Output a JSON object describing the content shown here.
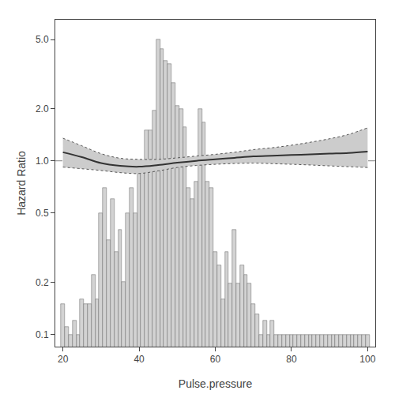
{
  "chart_data": {
    "type": "bar",
    "xlabel": "Pulse.pressure",
    "ylabel": "Hazard Ratio",
    "log": "y",
    "grid": false,
    "xlim": [
      18,
      102
    ],
    "xticks": [
      20,
      40,
      60,
      80,
      100
    ],
    "ylim": [
      0.085,
      6.5
    ],
    "yticks": [
      0.1,
      0.2,
      0.5,
      {
        "value": 1.0,
        "label": "1.0"
      },
      {
        "value": 2.0,
        "label": "2.0"
      },
      {
        "value": 5.0,
        "label": "5.0"
      }
    ],
    "series": [
      {
        "type": "bar",
        "color": "#d3d3d3",
        "x": [
          20,
          21,
          22,
          23,
          24,
          25,
          26,
          27,
          28,
          29,
          30,
          31,
          32,
          33,
          34,
          35,
          36,
          37,
          38,
          39,
          40,
          41,
          42,
          43,
          44,
          45,
          46,
          47,
          48,
          49,
          50,
          51,
          52,
          53,
          54,
          55,
          56,
          57,
          58,
          59,
          60,
          61,
          62,
          63,
          64,
          65,
          66,
          67,
          68,
          69,
          70,
          71,
          72,
          73,
          74,
          75,
          76,
          77,
          78,
          79,
          80,
          81,
          82,
          83,
          84,
          85,
          86,
          87,
          88,
          89,
          90,
          91,
          92,
          93,
          94,
          95,
          96,
          97,
          98,
          99,
          100
        ],
        "values": [
          0.15002,
          0.11003,
          0.09996,
          0.12003,
          0.09996,
          0.15993,
          0.15002,
          0.15002,
          0.21981,
          0.15993,
          0.50007,
          0.69977,
          0.34994,
          0.5999,
          0.29999,
          0.40012,
          0.19989,
          0.50007,
          0.69977,
          0.50007,
          0.95123,
          1,
          1.4993,
          1.4993,
          1.9387,
          4.9978,
          4.3973,
          3.7622,
          3.6002,
          2.8011,
          2.0772,
          1.9997,
          1.5683,
          0.69977,
          0.5999,
          0.76033,
          1.9997,
          1.6653,
          0.76033,
          0.69977,
          0.29999,
          0.25007,
          0.16009,
          0.29999,
          0.19691,
          0.40012,
          0.19691,
          0.25007,
          0.21959,
          0.19691,
          0.15002,
          0.13003,
          0.09996,
          0.12003,
          0.09996,
          0.12003,
          0.09996,
          0.09996,
          0.09996,
          0.09996,
          0.09996,
          0.09996,
          0.09996,
          0.09996,
          0.09996,
          0.09996,
          0.09996,
          0.09996,
          0.09996,
          0.09996,
          0.09996,
          0.09996,
          0.09996,
          0.09996,
          0.09996,
          0.09996,
          0.09996,
          0.09996,
          0.09996,
          0.09996,
          0.09996
        ]
      },
      {
        "type": "line",
        "color": "#999999",
        "line_style": "dashed",
        "x": [
          18,
          102
        ],
        "values": [
          1.0,
          1.0
        ]
      },
      {
        "type": "band",
        "color": "#cccccc",
        "line_style": "dotted",
        "x": [
          20,
          25,
          30,
          35,
          40,
          45,
          50,
          55,
          60,
          65,
          70,
          75,
          80,
          85,
          90,
          95,
          100
        ],
        "upper": [
          1.35,
          1.22,
          1.1,
          1.035,
          1.02,
          1.02,
          1.04,
          1.065,
          1.09,
          1.12,
          1.16,
          1.19,
          1.23,
          1.28,
          1.34,
          1.42,
          1.55
        ],
        "lower": [
          0.92,
          0.9,
          0.88,
          0.855,
          0.845,
          0.875,
          0.915,
          0.94,
          0.955,
          0.965,
          0.97,
          0.963,
          0.955,
          0.946,
          0.935,
          0.925,
          0.915
        ]
      },
      {
        "type": "line",
        "color": "#333333",
        "line_style": "solid",
        "x": [
          20,
          25,
          30,
          35,
          40,
          45,
          50,
          55,
          60,
          65,
          70,
          75,
          80,
          85,
          90,
          95,
          100
        ],
        "values": [
          1.12,
          1.05,
          0.97,
          0.935,
          0.925,
          0.945,
          0.975,
          1.0,
          1.02,
          1.04,
          1.06,
          1.07,
          1.08,
          1.09,
          1.1,
          1.11,
          1.13
        ]
      }
    ]
  }
}
